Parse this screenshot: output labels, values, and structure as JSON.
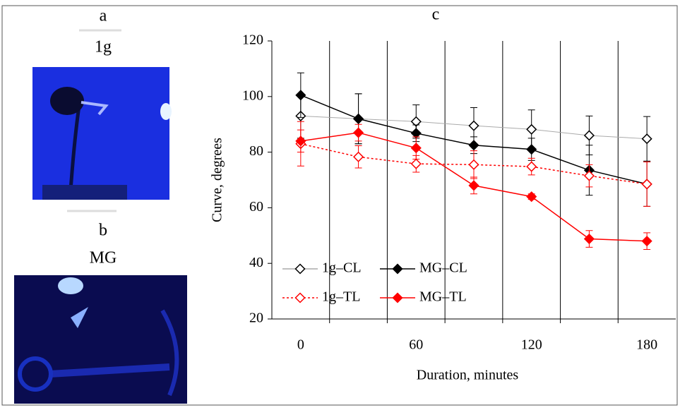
{
  "panel_a": {
    "label": "a",
    "caption": "1g"
  },
  "panel_b": {
    "label": "b",
    "caption": "MG"
  },
  "chart_data": {
    "type": "line",
    "title": "c",
    "x_label": "Duration, minutes",
    "y_label": "Curve, degrees",
    "categories": [
      "0",
      null,
      "60",
      null,
      "120",
      null,
      "180"
    ],
    "ylim": [
      20,
      120
    ],
    "yticks": [
      20,
      40,
      60,
      80,
      100,
      120
    ],
    "category_boundaries": true,
    "legend": "lower left",
    "series": [
      {
        "name": "1g–CL",
        "color": "#aaaaaa",
        "marker_color": "#000000",
        "marker_fill": "none",
        "dash": "solid",
        "values": [
          93,
          92,
          91,
          89.5,
          88.2,
          86,
          84.8
        ],
        "errors": [
          8,
          9,
          6,
          6.5,
          7,
          7,
          8
        ]
      },
      {
        "name": "MG–CL",
        "color": "#000000",
        "marker_color": "#000000",
        "marker_fill": "filled",
        "dash": "solid",
        "values": [
          100.5,
          92,
          86.8,
          82.5,
          81,
          73.5,
          68.5
        ],
        "errors": [
          8,
          9,
          3,
          3,
          4,
          9,
          8
        ]
      },
      {
        "name": "1g–TL",
        "color": "#ff0000",
        "marker_color": "#ff0000",
        "marker_fill": "none",
        "dash": "dotted",
        "values": [
          83,
          78.3,
          75.8,
          75.5,
          74.8,
          71.5,
          68.5
        ],
        "errors": [
          8,
          4,
          3,
          5,
          3,
          4,
          8
        ]
      },
      {
        "name": "MG–TL",
        "color": "#ff0000",
        "marker_color": "#ff0000",
        "marker_fill": "filled",
        "dash": "solid",
        "values": [
          84,
          87,
          81.5,
          68,
          64,
          48.8,
          48
        ],
        "errors": [
          4,
          3,
          4,
          3,
          1,
          3,
          3
        ]
      }
    ]
  }
}
